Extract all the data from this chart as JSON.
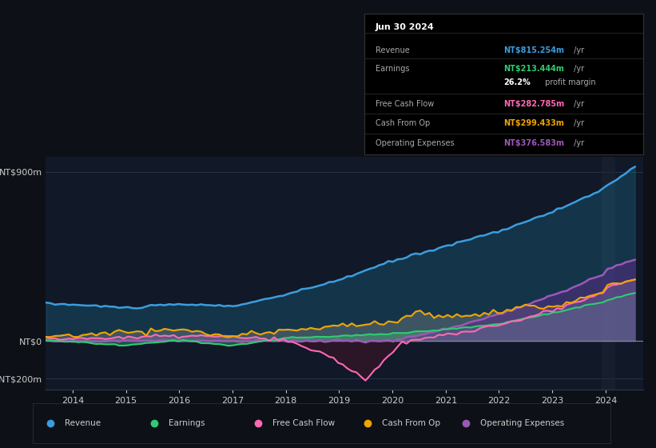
{
  "bg_color": "#0d1117",
  "chart_bg": "#111827",
  "grid_color": "#2a3a4a",
  "title_date": "Jun 30 2024",
  "revenue_color": "#3b9ddd",
  "earnings_color": "#2ecc71",
  "fcf_color": "#ff69b4",
  "cfo_color": "#f0a500",
  "opex_color": "#9b59b6",
  "y_labels": [
    "NT$900m",
    "NT$0",
    "-NT$200m"
  ],
  "y_values": [
    900,
    0,
    -200
  ],
  "x_labels": [
    "2014",
    "2015",
    "2016",
    "2017",
    "2018",
    "2019",
    "2020",
    "2021",
    "2022",
    "2023",
    "2024"
  ],
  "x_values": [
    2014,
    2015,
    2016,
    2017,
    2018,
    2019,
    2020,
    2021,
    2022,
    2023,
    2024
  ],
  "legend": [
    {
      "label": "Revenue",
      "color": "#3b9ddd"
    },
    {
      "label": "Earnings",
      "color": "#2ecc71"
    },
    {
      "label": "Free Cash Flow",
      "color": "#ff69b4"
    },
    {
      "label": "Cash From Op",
      "color": "#f0a500"
    },
    {
      "label": "Operating Expenses",
      "color": "#9b59b6"
    }
  ],
  "info_rows": [
    {
      "label": "Revenue",
      "value": "NT$815.254m /yr",
      "color": "#3b9ddd"
    },
    {
      "label": "Earnings",
      "value": "NT$213.444m /yr",
      "color": "#2ecc71"
    },
    {
      "label": "",
      "value": "26.2% profit margin",
      "color": null
    },
    {
      "label": "Free Cash Flow",
      "value": "NT$282.785m /yr",
      "color": "#ff69b4"
    },
    {
      "label": "Cash From Op",
      "value": "NT$299.433m /yr",
      "color": "#f0a500"
    },
    {
      "label": "Operating Expenses",
      "value": "NT$376.583m /yr",
      "color": "#9b59b6"
    }
  ]
}
